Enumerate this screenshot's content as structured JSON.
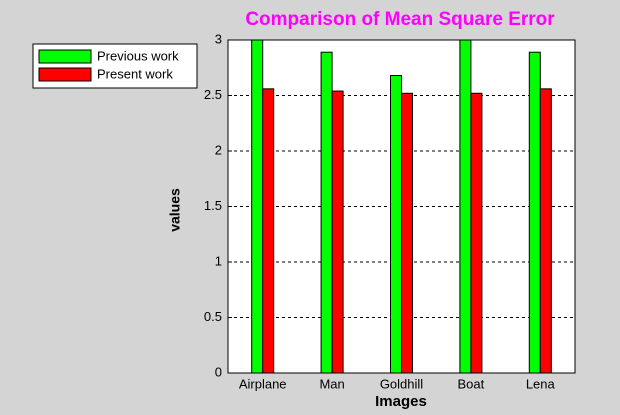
{
  "chart_data": {
    "type": "bar",
    "title": "Comparison of Mean Square Error",
    "xlabel": "Images",
    "ylabel": "values",
    "categories": [
      "Airplane",
      "Man",
      "Goldhill",
      "Boat",
      "Lena"
    ],
    "series": [
      {
        "name": "Previous work",
        "color": "#00ff00",
        "values": [
          3.0,
          2.89,
          2.68,
          3.0,
          2.89
        ]
      },
      {
        "name": "Present work",
        "color": "#ff0000",
        "values": [
          2.56,
          2.54,
          2.52,
          2.52,
          2.56
        ]
      }
    ],
    "ylim": [
      0,
      3
    ],
    "yticks": [
      0,
      0.5,
      1,
      1.5,
      2,
      2.5,
      3
    ],
    "grid": true,
    "legend": "upper-left"
  }
}
